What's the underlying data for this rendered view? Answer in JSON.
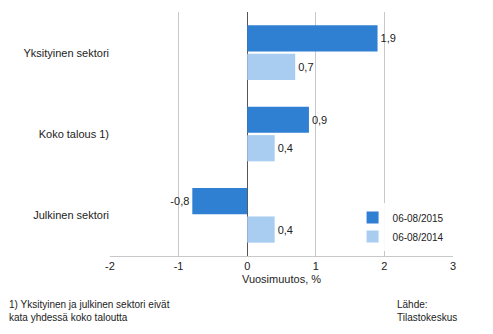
{
  "chart_data": {
    "type": "bar",
    "orientation": "horizontal",
    "categories": [
      "Yksityinen sektori",
      "Koko talous 1)",
      "Julkinen sektori"
    ],
    "series": [
      {
        "name": "06-08/2015",
        "color": "#2f7fd3",
        "values": [
          1.9,
          0.9,
          -0.8
        ],
        "value_labels": [
          "1,9",
          "0,9",
          "-0,8"
        ]
      },
      {
        "name": "06-08/2014",
        "color": "#a8cdf0",
        "values": [
          0.7,
          0.4,
          0.4
        ],
        "value_labels": [
          "0,7",
          "0,4",
          "0,4"
        ]
      }
    ],
    "x_label": "Vuosimuutos, %",
    "xlim": [
      -2,
      3
    ],
    "xticks": [
      -2,
      -1,
      0,
      1,
      2,
      3
    ],
    "grid": true,
    "legend": "lower right",
    "data_labels": true,
    "annotations": [
      "1) Yksityinen ja julkinen sektori eivät\nkata yhdessä koko taloutta",
      "Lähde:\nTilastokeskus"
    ]
  }
}
